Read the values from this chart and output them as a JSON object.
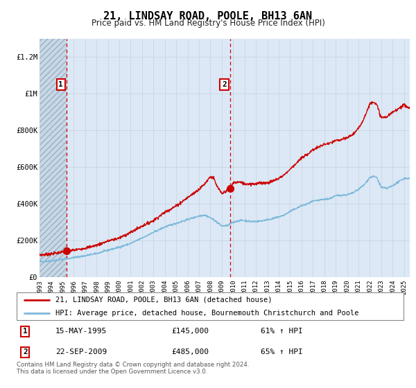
{
  "title": "21, LINDSAY ROAD, POOLE, BH13 6AN",
  "subtitle": "Price paid vs. HM Land Registry's House Price Index (HPI)",
  "legend_line1": "21, LINDSAY ROAD, POOLE, BH13 6AN (detached house)",
  "legend_line2": "HPI: Average price, detached house, Bournemouth Christchurch and Poole",
  "annotation1_date": "15-MAY-1995",
  "annotation1_price": "£145,000",
  "annotation1_hpi": "61% ↑ HPI",
  "annotation2_date": "22-SEP-2009",
  "annotation2_price": "£485,000",
  "annotation2_hpi": "65% ↑ HPI",
  "sale1_year": 1995.37,
  "sale1_value": 145000,
  "sale2_year": 2009.72,
  "sale2_value": 485000,
  "hpi_color": "#7bb8db",
  "property_color": "#cc0000",
  "vline_color": "#cc0000",
  "grid_color": "#c0ccd8",
  "bg_color": "#dce8f5",
  "footer_text": "Contains HM Land Registry data © Crown copyright and database right 2024.\nThis data is licensed under the Open Government Licence v3.0.",
  "ylim": [
    0,
    1300000
  ],
  "xlim_start": 1993.0,
  "xlim_end": 2025.5,
  "hpi_knots_x": [
    1993,
    1994,
    1995,
    1996,
    1997,
    1998,
    1999,
    2000,
    2001,
    2002,
    2003,
    2004,
    2005,
    2006,
    2007,
    2007.5,
    2008,
    2008.5,
    2009,
    2009.5,
    2010,
    2010.5,
    2011,
    2011.5,
    2012,
    2012.5,
    2013,
    2013.5,
    2014,
    2014.5,
    2015,
    2015.5,
    2016,
    2016.5,
    2017,
    2017.5,
    2018,
    2018.5,
    2019,
    2019.5,
    2020,
    2020.5,
    2021,
    2021.5,
    2022,
    2022.3,
    2022.6,
    2023,
    2023.5,
    2024,
    2024.5,
    2025,
    2025.5
  ],
  "hpi_knots_y": [
    85000,
    90000,
    98000,
    108000,
    118000,
    130000,
    148000,
    165000,
    185000,
    215000,
    245000,
    275000,
    295000,
    315000,
    335000,
    340000,
    325000,
    305000,
    280000,
    282000,
    300000,
    310000,
    310000,
    305000,
    305000,
    308000,
    315000,
    320000,
    330000,
    340000,
    360000,
    375000,
    390000,
    400000,
    415000,
    420000,
    425000,
    430000,
    445000,
    448000,
    450000,
    460000,
    480000,
    505000,
    545000,
    550000,
    545000,
    490000,
    485000,
    500000,
    520000,
    540000,
    540000
  ],
  "prop_knots_x": [
    1993,
    1994,
    1995,
    1995.37,
    1996,
    1997,
    1998,
    1999,
    2000,
    2001,
    2002,
    2003,
    2004,
    2005,
    2006,
    2007,
    2007.5,
    2008,
    2008.3,
    2008.5,
    2009,
    2009.72,
    2010,
    2010.5,
    2011,
    2011.5,
    2012,
    2012.5,
    2013,
    2013.5,
    2014,
    2014.5,
    2015,
    2015.5,
    2016,
    2016.5,
    2017,
    2017.5,
    2018,
    2018.5,
    2019,
    2019.5,
    2020,
    2020.5,
    2021,
    2021.5,
    2022,
    2022.3,
    2022.6,
    2023,
    2023.5,
    2024,
    2024.5,
    2025,
    2025.5
  ],
  "prop_knots_y": [
    122000,
    128000,
    138000,
    145000,
    148000,
    160000,
    175000,
    198000,
    215000,
    245000,
    280000,
    310000,
    355000,
    390000,
    435000,
    480000,
    510000,
    550000,
    540000,
    505000,
    455000,
    485000,
    515000,
    520000,
    510000,
    510000,
    510000,
    515000,
    515000,
    525000,
    540000,
    560000,
    590000,
    620000,
    650000,
    670000,
    695000,
    710000,
    725000,
    730000,
    745000,
    750000,
    760000,
    780000,
    810000,
    870000,
    945000,
    960000,
    940000,
    870000,
    875000,
    900000,
    920000,
    940000,
    920000
  ]
}
